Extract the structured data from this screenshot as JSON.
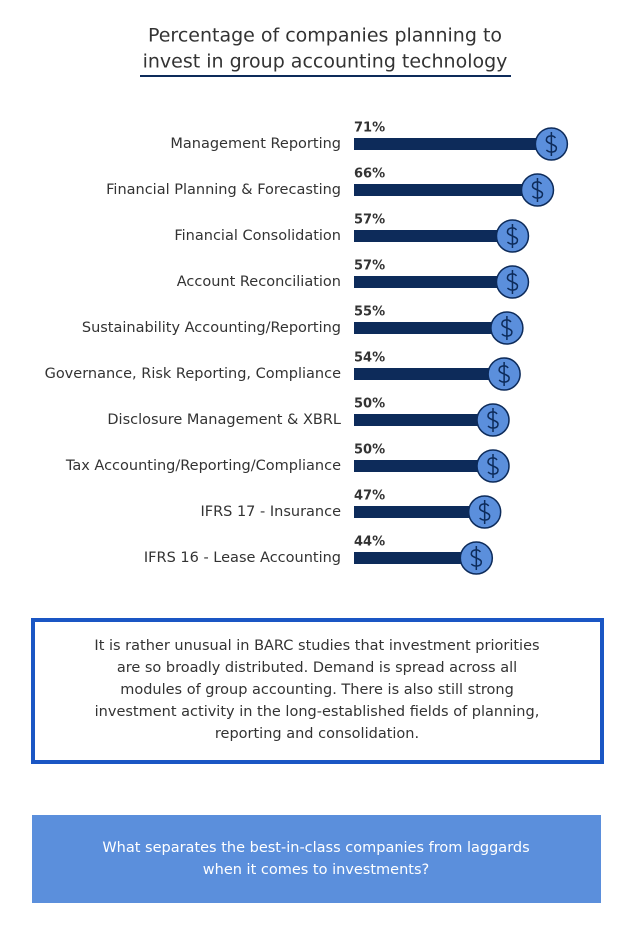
{
  "chart_data": {
    "type": "bar",
    "orientation": "horizontal",
    "title": [
      "Percentage of companies planning to",
      "invest in group accounting technology"
    ],
    "categories": [
      "Management Reporting",
      "Financial Planning & Forecasting",
      "Financial Consolidation",
      "Account Reconciliation",
      "Sustainability Accounting/Reporting",
      "Governance, Risk Reporting, Compliance",
      "Disclosure Management & XBRL",
      "Tax Accounting/Reporting/Compliance",
      "IFRS 17 - Insurance",
      "IFRS 16 - Lease Accounting"
    ],
    "values": [
      71,
      66,
      57,
      57,
      55,
      54,
      50,
      50,
      47,
      44
    ],
    "value_labels": [
      "71%",
      "66%",
      "57%",
      "57%",
      "55%",
      "54%",
      "50%",
      "50%",
      "47%",
      "44%"
    ],
    "color": "#0d2b5a",
    "marker_color": "#5b8fdc"
  },
  "note": {
    "lines": [
      "It is rather unusual in BARC studies that investment priorities",
      "are so broadly distributed. Demand is spread across all",
      "modules of group accounting. There is also still strong",
      "investment activity in the long-established fields of planning,",
      "reporting and consolidation."
    ]
  },
  "cta": {
    "lines": [
      "What separates the best-in-class companies from laggards",
      "when it comes to investments?"
    ]
  }
}
